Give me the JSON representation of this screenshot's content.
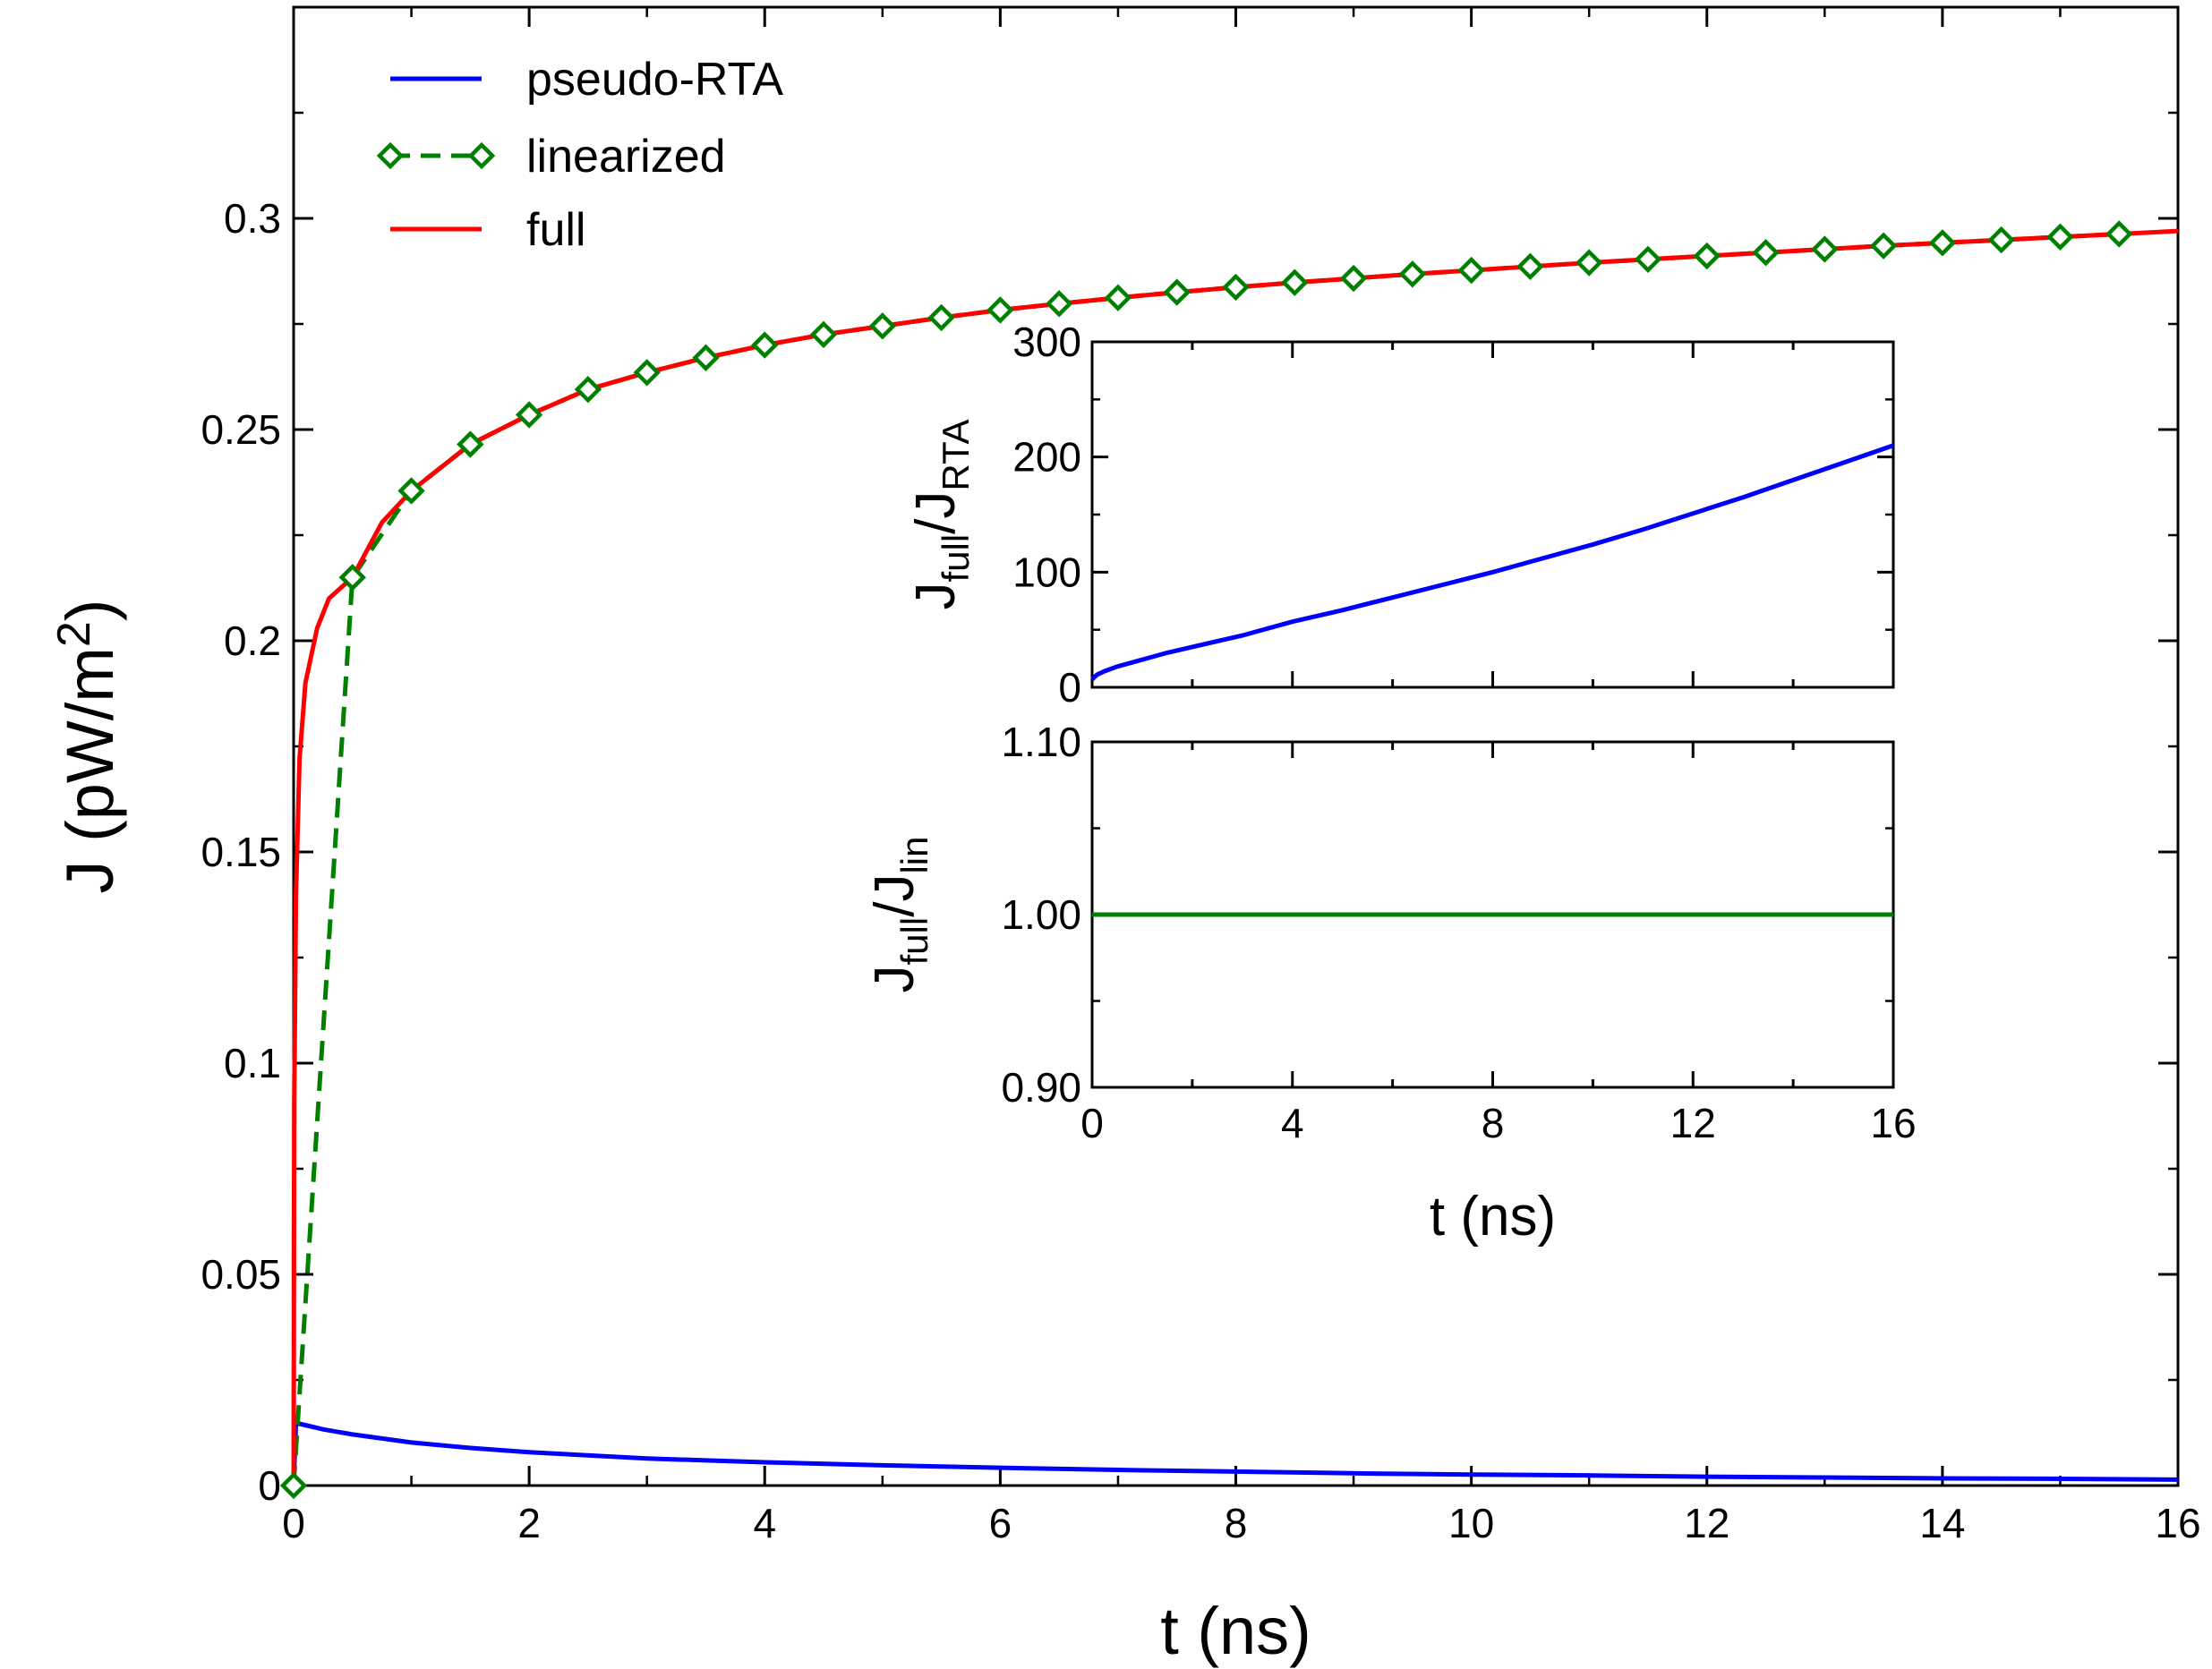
{
  "chart_data": [
    {
      "type": "line",
      "role": "main",
      "xlabel": "t (ns)",
      "ylabel": {
        "base": "J (pW/m",
        "sup": "2",
        "tail": ")"
      },
      "xlim": [
        0,
        16
      ],
      "ylim": [
        0,
        0.35
      ],
      "x_ticks": [
        0,
        2,
        4,
        6,
        8,
        10,
        12,
        14,
        16
      ],
      "x_tick_labels": [
        "0",
        "2",
        "4",
        "6",
        "8",
        "10",
        "12",
        "14",
        "16"
      ],
      "y_ticks": [
        0,
        0.05,
        0.1,
        0.15,
        0.2,
        0.25,
        0.3
      ],
      "y_tick_labels": [
        "0",
        "0.05",
        "0.1",
        "0.15",
        "0.2",
        "0.25",
        "0.3"
      ],
      "legend_position": "top-left",
      "series": [
        {
          "name": "pseudo-RTA",
          "color": "#0000ff",
          "style": "solid",
          "x": [
            0,
            0.02,
            0.1,
            0.25,
            0.5,
            1,
            1.5,
            2,
            3,
            4,
            5,
            6,
            7,
            8,
            9,
            10,
            11,
            12,
            13,
            14,
            15,
            16
          ],
          "y": [
            0,
            0.0148,
            0.0143,
            0.0133,
            0.0121,
            0.0102,
            0.0089,
            0.0079,
            0.0064,
            0.0055,
            0.0048,
            0.0042,
            0.0037,
            0.0033,
            0.0029,
            0.0026,
            0.0024,
            0.0021,
            0.0019,
            0.0017,
            0.0016,
            0.0014
          ]
        },
        {
          "name": "linearized",
          "color": "#008000",
          "style": "dashed",
          "marker": "diamond",
          "x": [
            0,
            0.5,
            1,
            1.5,
            2,
            2.5,
            3,
            3.5,
            4,
            4.5,
            5,
            5.5,
            6,
            6.5,
            7,
            7.5,
            8,
            8.5,
            9,
            9.5,
            10,
            10.5,
            11,
            11.5,
            12,
            12.5,
            13,
            13.5,
            14,
            14.5,
            15,
            15.5
          ],
          "y": [
            0,
            0.215,
            0.2355,
            0.2465,
            0.2535,
            0.2595,
            0.2635,
            0.267,
            0.27,
            0.2725,
            0.2745,
            0.2765,
            0.2783,
            0.2798,
            0.2812,
            0.2825,
            0.2837,
            0.2848,
            0.2858,
            0.2868,
            0.2877,
            0.2886,
            0.2895,
            0.2903,
            0.2911,
            0.2919,
            0.2927,
            0.2935,
            0.2942,
            0.2949,
            0.2956,
            0.2963
          ]
        },
        {
          "name": "full",
          "color": "#ff0000",
          "style": "solid",
          "x": [
            0,
            0.005,
            0.02,
            0.05,
            0.1,
            0.2,
            0.3,
            0.5,
            0.75,
            1,
            1.5,
            2,
            2.5,
            3,
            3.5,
            4,
            4.5,
            5,
            5.5,
            6,
            6.5,
            7,
            7.5,
            8,
            8.5,
            9,
            9.5,
            10,
            10.5,
            11,
            11.5,
            12,
            12.5,
            13,
            13.5,
            14,
            14.5,
            15,
            15.5,
            16
          ],
          "y": [
            0,
            0.09,
            0.14,
            0.172,
            0.19,
            0.203,
            0.21,
            0.215,
            0.228,
            0.2355,
            0.2465,
            0.2535,
            0.2595,
            0.2635,
            0.267,
            0.27,
            0.2725,
            0.2745,
            0.2765,
            0.2783,
            0.2798,
            0.2812,
            0.2825,
            0.2837,
            0.2848,
            0.2858,
            0.2868,
            0.2877,
            0.2886,
            0.2895,
            0.2903,
            0.2911,
            0.2919,
            0.2927,
            0.2935,
            0.2942,
            0.2949,
            0.2956,
            0.2963,
            0.297
          ]
        }
      ]
    },
    {
      "type": "line",
      "role": "inset-top",
      "ylabel": {
        "a": "J",
        "a_sub": "full",
        "b": "/J",
        "b_sub": "RTA"
      },
      "xlim": [
        0,
        16
      ],
      "ylim": [
        0,
        300
      ],
      "y_ticks": [
        0,
        100,
        200,
        300
      ],
      "y_tick_labels": [
        "0",
        "100",
        "200",
        "300"
      ],
      "series": [
        {
          "color": "#0000ff",
          "x": [
            0,
            0.1,
            0.25,
            0.5,
            1,
            1.5,
            2,
            3,
            4,
            5,
            6,
            7,
            8,
            9,
            10,
            11,
            12,
            13,
            14,
            15,
            16
          ],
          "y": [
            7,
            11,
            14,
            18,
            24,
            30,
            35,
            45,
            57,
            67,
            78,
            89,
            100,
            112,
            124,
            137,
            151,
            165,
            180,
            195,
            210
          ]
        }
      ]
    },
    {
      "type": "line",
      "role": "inset-bottom",
      "xlabel": "t (ns)",
      "ylabel": {
        "a": "J",
        "a_sub": "full",
        "b": "/J",
        "b_sub": "lin"
      },
      "xlim": [
        0,
        16
      ],
      "ylim": [
        0.9,
        1.1
      ],
      "x_ticks": [
        0,
        4,
        8,
        12,
        16
      ],
      "x_tick_labels": [
        "0",
        "4",
        "8",
        "12",
        "16"
      ],
      "y_ticks": [
        0.9,
        1.0,
        1.1
      ],
      "y_tick_labels": [
        "0.90",
        "1.00",
        "1.10"
      ],
      "series": [
        {
          "color": "#008000",
          "x": [
            0,
            16
          ],
          "y": [
            1.0,
            1.0
          ]
        }
      ]
    }
  ]
}
